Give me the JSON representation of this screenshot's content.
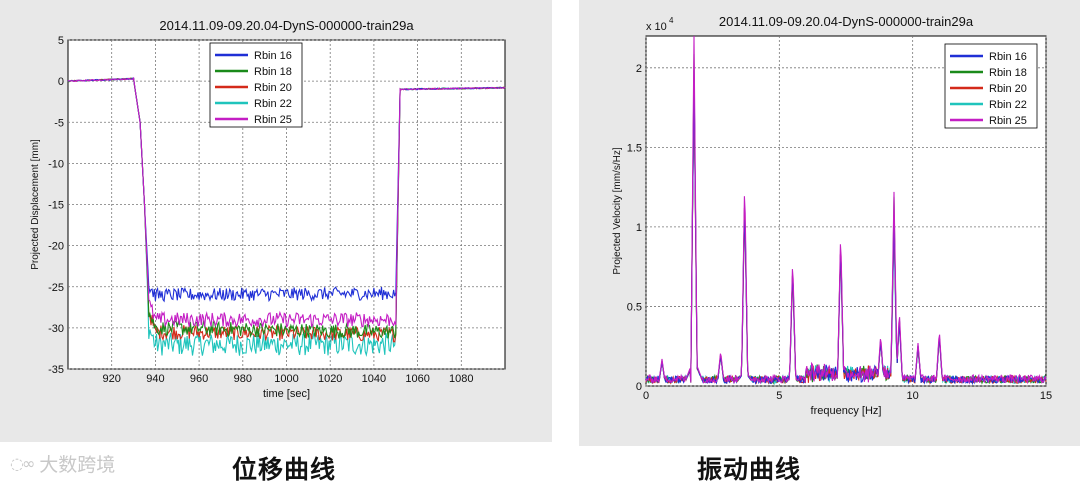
{
  "chart_data": [
    {
      "id": "displacement",
      "type": "line",
      "title": "2014.11.09-09.20.04-DynS-000000-train29a",
      "xlabel": "time [sec]",
      "ylabel": "Projected Displacement [mm]",
      "xlim": [
        900,
        1100
      ],
      "ylim": [
        -35,
        5
      ],
      "xticks": [
        920,
        940,
        960,
        980,
        1000,
        1020,
        1040,
        1060,
        1080
      ],
      "yticks": [
        5,
        0,
        -5,
        -10,
        -15,
        -20,
        -25,
        -30,
        -35
      ],
      "grid": true,
      "legend_position": "top-right",
      "series": [
        {
          "name": "Rbin   16",
          "color": "#1f2fd6",
          "x": [
            900,
            930,
            933,
            935,
            937,
            940,
            1050,
            1052,
            1100
          ],
          "y": [
            0,
            0.3,
            -5,
            -15,
            -25,
            -26,
            -25.8,
            -1,
            -0.8
          ]
        },
        {
          "name": "Rbin   18",
          "color": "#1a8a1a",
          "x": [
            900,
            930,
            933,
            935,
            937,
            940,
            1050,
            1052,
            1100
          ],
          "y": [
            0,
            0.3,
            -5,
            -15,
            -28,
            -30,
            -30.5,
            -1,
            -0.8
          ]
        },
        {
          "name": "Rbin   20",
          "color": "#d42a1a",
          "x": [
            900,
            930,
            933,
            935,
            937,
            940,
            1050,
            1052,
            1100
          ],
          "y": [
            0,
            0.3,
            -5,
            -15,
            -28,
            -30.5,
            -30.8,
            -1,
            -0.8
          ]
        },
        {
          "name": "Rbin   22",
          "color": "#1fc4bc",
          "x": [
            900,
            930,
            933,
            935,
            937,
            940,
            1050,
            1052,
            1100
          ],
          "y": [
            0,
            0.3,
            -5,
            -15,
            -30,
            -32,
            -32,
            -1,
            -0.8
          ]
        },
        {
          "name": "Rbin   25",
          "color": "#c41ec4",
          "x": [
            900,
            930,
            933,
            935,
            937,
            940,
            1050,
            1052,
            1100
          ],
          "y": [
            0,
            0.3,
            -5,
            -15,
            -27,
            -29,
            -29,
            -1,
            -0.8
          ]
        }
      ]
    },
    {
      "id": "velocity",
      "type": "line",
      "title": "2014.11.09-09.20.04-DynS-000000-train29a",
      "xlabel": "frequency [Hz]",
      "ylabel": "Projected Velocity [mm/s/Hz]",
      "exponent_label": "x 10",
      "exponent_power": "4",
      "xlim": [
        0,
        15
      ],
      "ylim": [
        0,
        2.2
      ],
      "xticks": [
        0,
        5,
        10,
        15
      ],
      "yticks": [
        2,
        1.5,
        1,
        0.5,
        0
      ],
      "grid": true,
      "legend_position": "top-right",
      "peaks": [
        {
          "f": 0.6,
          "v": 0.15
        },
        {
          "f": 1.8,
          "v": 2.2
        },
        {
          "f": 2.8,
          "v": 0.2
        },
        {
          "f": 3.7,
          "v": 1.28
        },
        {
          "f": 5.5,
          "v": 0.78
        },
        {
          "f": 7.3,
          "v": 0.95
        },
        {
          "f": 8.8,
          "v": 0.3
        },
        {
          "f": 9.3,
          "v": 1.2
        },
        {
          "f": 9.5,
          "v": 0.45
        },
        {
          "f": 10.2,
          "v": 0.25
        },
        {
          "f": 11.0,
          "v": 0.33
        }
      ],
      "series": [
        {
          "name": "Rbin   16",
          "color": "#1f2fd6"
        },
        {
          "name": "Rbin   18",
          "color": "#1a8a1a"
        },
        {
          "name": "Rbin   20",
          "color": "#d42a1a"
        },
        {
          "name": "Rbin   22",
          "color": "#1fc4bc"
        },
        {
          "name": "Rbin   25",
          "color": "#c41ec4"
        }
      ]
    }
  ],
  "captions": {
    "left": "位移曲线",
    "right": "振动曲线"
  },
  "watermark": "大数跨境"
}
